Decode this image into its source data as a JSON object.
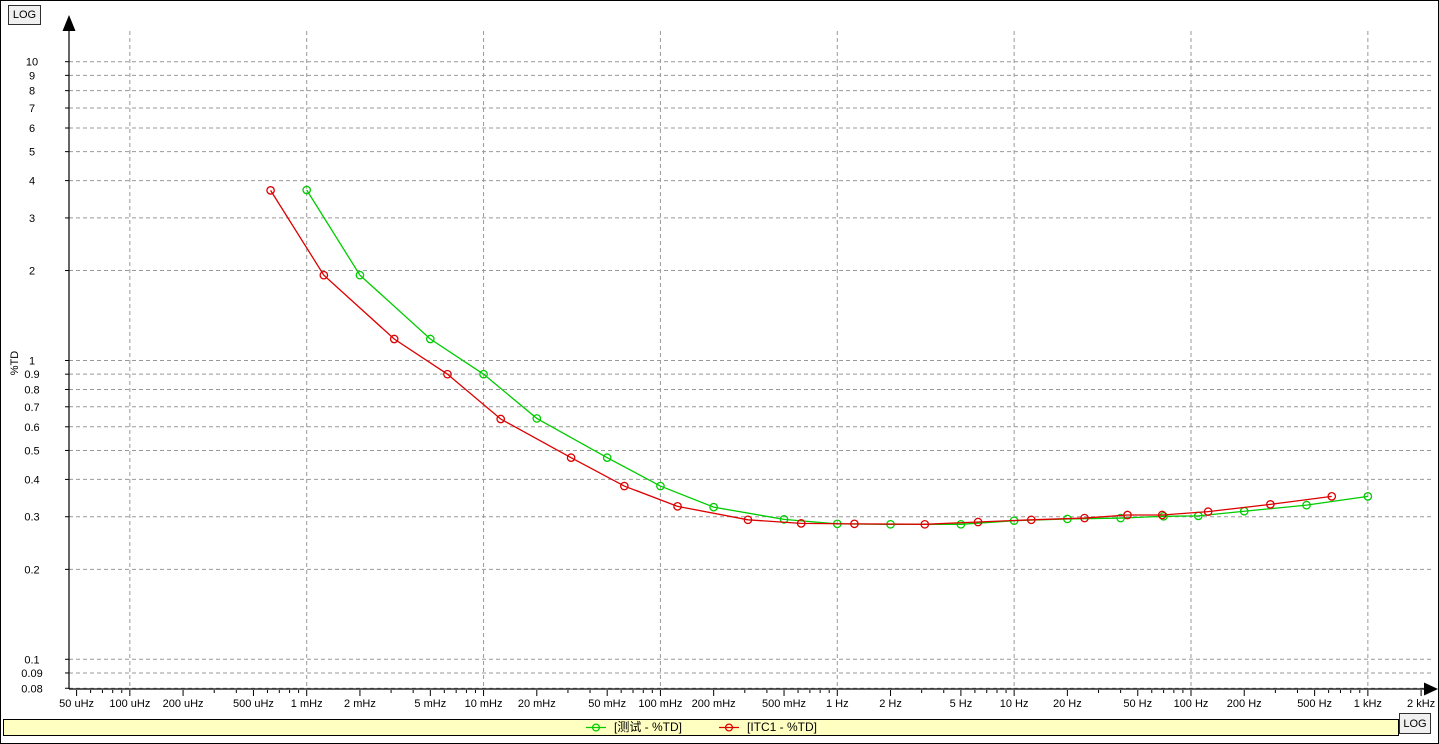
{
  "window": {
    "log_button_top": "LOG",
    "log_button_bottom": "LOG",
    "background": "#ffffff"
  },
  "chart_data": {
    "type": "line",
    "title": "",
    "xlabel": "",
    "ylabel": "%TD",
    "grid": true,
    "grid_color": "#999999",
    "axis_color": "#000000",
    "legend_position": "bottom",
    "legend_background": "#ffffc2",
    "x_axis": {
      "scale": "log",
      "min": 5e-05,
      "max": 2000,
      "major_ticks": [
        {
          "value": 5e-05,
          "label": "50 uHz"
        },
        {
          "value": 0.0001,
          "label": "100 uHz"
        },
        {
          "value": 0.0002,
          "label": "200 uHz"
        },
        {
          "value": 0.0005,
          "label": "500 uHz"
        },
        {
          "value": 0.001,
          "label": "1 mHz"
        },
        {
          "value": 0.002,
          "label": "2 mHz"
        },
        {
          "value": 0.005,
          "label": "5 mHz"
        },
        {
          "value": 0.01,
          "label": "10 mHz"
        },
        {
          "value": 0.02,
          "label": "20 mHz"
        },
        {
          "value": 0.05,
          "label": "50 mHz"
        },
        {
          "value": 0.1,
          "label": "100 mHz"
        },
        {
          "value": 0.2,
          "label": "200 mHz"
        },
        {
          "value": 0.5,
          "label": "500 mHz"
        },
        {
          "value": 1,
          "label": "1 Hz"
        },
        {
          "value": 2,
          "label": "2 Hz"
        },
        {
          "value": 5,
          "label": "5 Hz"
        },
        {
          "value": 10,
          "label": "10 Hz"
        },
        {
          "value": 20,
          "label": "20 Hz"
        },
        {
          "value": 50,
          "label": "50 Hz"
        },
        {
          "value": 100,
          "label": "100 Hz"
        },
        {
          "value": 200,
          "label": "200 Hz"
        },
        {
          "value": 500,
          "label": "500 Hz"
        },
        {
          "value": 1000,
          "label": "1 kHz"
        },
        {
          "value": 2000,
          "label": "2 kHz"
        }
      ],
      "gridline_values": [
        0.0001,
        0.001,
        0.01,
        0.1,
        1,
        10,
        100,
        1000
      ]
    },
    "y_axis": {
      "scale": "log",
      "min": 0.08,
      "max": 10,
      "ticks": [
        {
          "value": 10,
          "label": "10"
        },
        {
          "value": 9,
          "label": "9"
        },
        {
          "value": 8,
          "label": "8"
        },
        {
          "value": 7,
          "label": "7"
        },
        {
          "value": 6,
          "label": "6"
        },
        {
          "value": 5,
          "label": "5"
        },
        {
          "value": 4,
          "label": "4"
        },
        {
          "value": 3,
          "label": "3"
        },
        {
          "value": 2,
          "label": "2"
        },
        {
          "value": 1,
          "label": "1"
        },
        {
          "value": 0.9,
          "label": "0.9"
        },
        {
          "value": 0.8,
          "label": "0.8"
        },
        {
          "value": 0.7,
          "label": "0.7"
        },
        {
          "value": 0.6,
          "label": "0.6"
        },
        {
          "value": 0.5,
          "label": "0.5"
        },
        {
          "value": 0.4,
          "label": "0.4"
        },
        {
          "value": 0.3,
          "label": "0.3"
        },
        {
          "value": 0.2,
          "label": "0.2"
        },
        {
          "value": 0.1,
          "label": "0.1"
        },
        {
          "value": 0.09,
          "label": "0.09"
        },
        {
          "value": 0.08,
          "label": "0.08"
        }
      ]
    },
    "series": [
      {
        "key": "test-series",
        "name": "[测试 - %TD]",
        "color": "#00cc00",
        "marker": "open-circle",
        "x": [
          0.001,
          0.002,
          0.005,
          0.01,
          0.02,
          0.05,
          0.1,
          0.2,
          0.5,
          1,
          2,
          5,
          10,
          20,
          40,
          70,
          110,
          200,
          450,
          1000
        ],
        "values": [
          3.72,
          1.93,
          1.18,
          0.9,
          0.64,
          0.473,
          0.38,
          0.323,
          0.294,
          0.284,
          0.283,
          0.283,
          0.291,
          0.295,
          0.297,
          0.301,
          0.302,
          0.313,
          0.328,
          0.351
        ]
      },
      {
        "key": "itc1-series",
        "name": "[ITC1 - %TD]",
        "color": "#dd0000",
        "marker": "open-circle",
        "x": [
          0.000625,
          0.00125,
          0.003125,
          0.00625,
          0.0125,
          0.03125,
          0.0625,
          0.125,
          0.3125,
          0.625,
          1.25,
          3.125,
          6.25,
          12.5,
          25,
          43.75,
          68.75,
          125,
          281,
          625
        ],
        "values": [
          3.71,
          1.93,
          1.18,
          0.9,
          0.637,
          0.473,
          0.38,
          0.325,
          0.293,
          0.285,
          0.284,
          0.283,
          0.288,
          0.293,
          0.297,
          0.304,
          0.304,
          0.312,
          0.33,
          0.351
        ]
      }
    ]
  }
}
